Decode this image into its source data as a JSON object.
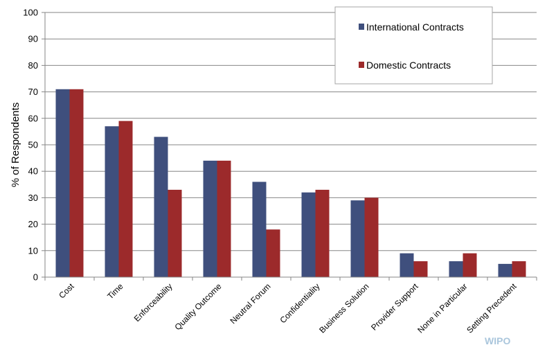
{
  "chart_data": {
    "type": "bar",
    "title": "",
    "xlabel": "",
    "ylabel": "% of Respondents",
    "ylim": [
      0,
      100
    ],
    "yticks": [
      0,
      10,
      20,
      30,
      40,
      50,
      60,
      70,
      80,
      90,
      100
    ],
    "grid": true,
    "legend_position": "top-right",
    "categories": [
      "Cost",
      "Time",
      "Enforceability",
      "Quality Outcome",
      "Neutral Forum",
      "Confidentiality",
      "Business Solution",
      "Provider Support",
      "None in Particular",
      "Setting Precedent"
    ],
    "series": [
      {
        "name": "International Contracts",
        "color": "#3f4f7d",
        "values": [
          71,
          57,
          53,
          44,
          36,
          32,
          29,
          9,
          6,
          5
        ]
      },
      {
        "name": "Domestic Contracts",
        "color": "#9c2a2b",
        "values": [
          71,
          59,
          33,
          44,
          18,
          33,
          30,
          6,
          9,
          6
        ]
      }
    ]
  },
  "watermark": "WIPO"
}
